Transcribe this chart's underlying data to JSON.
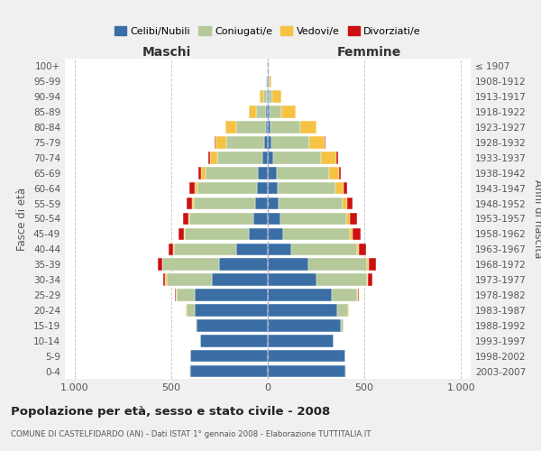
{
  "age_groups": [
    "0-4",
    "5-9",
    "10-14",
    "15-19",
    "20-24",
    "25-29",
    "30-34",
    "35-39",
    "40-44",
    "45-49",
    "50-54",
    "55-59",
    "60-64",
    "65-69",
    "70-74",
    "75-79",
    "80-84",
    "85-89",
    "90-94",
    "95-99",
    "100+"
  ],
  "birth_years": [
    "2003-2007",
    "1998-2002",
    "1993-1997",
    "1988-1992",
    "1983-1987",
    "1978-1982",
    "1973-1977",
    "1968-1972",
    "1963-1967",
    "1958-1962",
    "1953-1957",
    "1948-1952",
    "1943-1947",
    "1938-1942",
    "1933-1937",
    "1928-1932",
    "1923-1927",
    "1918-1922",
    "1913-1917",
    "1908-1912",
    "≤ 1907"
  ],
  "males": {
    "celibi": [
      400,
      400,
      350,
      370,
      380,
      380,
      290,
      250,
      165,
      100,
      75,
      65,
      55,
      50,
      30,
      20,
      10,
      8,
      5,
      3,
      2
    ],
    "coniugati": [
      5,
      2,
      2,
      5,
      40,
      90,
      235,
      295,
      320,
      330,
      330,
      320,
      310,
      270,
      230,
      195,
      155,
      55,
      20,
      5,
      2
    ],
    "vedovi": [
      0,
      0,
      0,
      0,
      3,
      5,
      5,
      3,
      3,
      3,
      5,
      8,
      15,
      25,
      40,
      55,
      55,
      35,
      15,
      2,
      0
    ],
    "divorziati": [
      0,
      0,
      0,
      0,
      2,
      5,
      10,
      20,
      25,
      30,
      30,
      25,
      25,
      15,
      10,
      5,
      0,
      0,
      0,
      0,
      0
    ]
  },
  "females": {
    "nubili": [
      400,
      400,
      340,
      380,
      360,
      330,
      250,
      210,
      120,
      80,
      65,
      55,
      50,
      45,
      30,
      20,
      15,
      10,
      5,
      3,
      2
    ],
    "coniugate": [
      5,
      2,
      2,
      10,
      55,
      130,
      265,
      305,
      340,
      345,
      340,
      330,
      300,
      270,
      245,
      195,
      155,
      60,
      20,
      5,
      2
    ],
    "vedove": [
      0,
      0,
      0,
      0,
      3,
      5,
      5,
      8,
      10,
      15,
      20,
      25,
      40,
      55,
      80,
      80,
      80,
      75,
      45,
      10,
      2
    ],
    "divorziate": [
      0,
      0,
      0,
      0,
      3,
      8,
      20,
      35,
      40,
      40,
      35,
      30,
      20,
      10,
      10,
      5,
      0,
      0,
      0,
      0,
      0
    ]
  },
  "colors": {
    "celibi": "#3a6ea5",
    "coniugati": "#b5c99a",
    "vedovi": "#f5c242",
    "divorziati": "#cc1111"
  },
  "xlim": 1050,
  "title": "Popolazione per età, sesso e stato civile - 2008",
  "subtitle": "COMUNE DI CASTELFIDARDO (AN) - Dati ISTAT 1° gennaio 2008 - Elaborazione TUTTITALIA.IT",
  "xlabel_left": "Maschi",
  "xlabel_right": "Femmine",
  "ylabel_left": "Fasce di età",
  "ylabel_right": "Anni di nascita",
  "bg_color": "#f0f0f0",
  "plot_bg": "#ffffff"
}
